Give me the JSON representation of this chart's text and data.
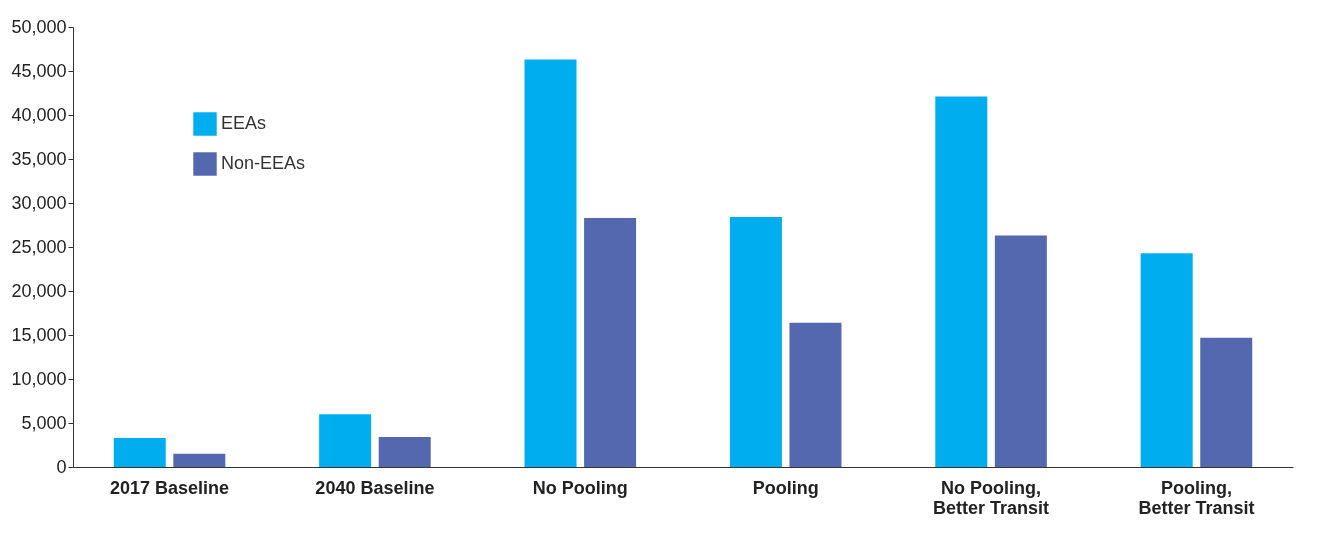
{
  "chart_data": {
    "type": "bar",
    "categories": [
      "2017 Baseline",
      "2040 Baseline",
      "No Pooling",
      "Pooling",
      "No Pooling, Better Transit",
      "Pooling, Better Transit"
    ],
    "series": [
      {
        "name": "EEAs",
        "color": "#00aeef",
        "values": [
          3300,
          6000,
          46300,
          28400,
          42100,
          24300
        ]
      },
      {
        "name": "Non-EEAs",
        "color": "#5468b0",
        "values": [
          1500,
          3400,
          28300,
          16400,
          26300,
          14700
        ]
      }
    ],
    "ylim": [
      0,
      50000
    ],
    "yticks": [
      0,
      {
        "value": 5000,
        "label": "5,000"
      },
      {
        "value": 10000,
        "label": "10,000"
      },
      {
        "value": 15000,
        "label": "15,000"
      },
      {
        "value": 20000,
        "label": "20,000"
      },
      {
        "value": 25000,
        "label": "25,000"
      },
      {
        "value": 30000,
        "label": "30,000"
      },
      {
        "value": 35000,
        "label": "35,000"
      },
      {
        "value": 40000,
        "label": "40,000"
      },
      {
        "value": 45000,
        "label": "45,000"
      },
      {
        "value": 50000,
        "label": "50,000"
      }
    ],
    "grid": false,
    "legend": "top left"
  }
}
